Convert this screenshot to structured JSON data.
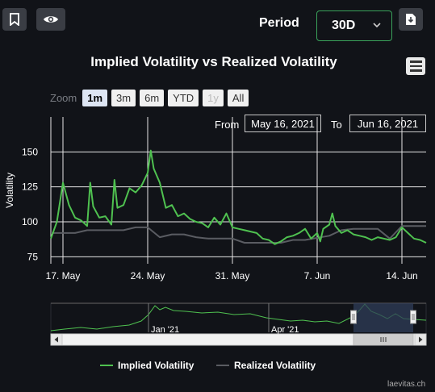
{
  "toolbar": {
    "bookmark_icon": "bookmark-icon",
    "eye_icon": "eye-icon",
    "download_icon": "download-icon",
    "period_label": "Period",
    "period_value": "30D"
  },
  "chart_data": {
    "type": "line",
    "title": "Implied Volatility vs Realized Volatility",
    "ylabel": "Volatility",
    "xlabel": "",
    "ylim": [
      70,
      175
    ],
    "yticks": [
      75,
      100,
      125,
      150
    ],
    "x_range": [
      "2021-05-16",
      "2021-06-16"
    ],
    "x_ticks": [
      {
        "label": "17. May",
        "date": "2021-05-17"
      },
      {
        "label": "24. May",
        "date": "2021-05-24"
      },
      {
        "label": "31. May",
        "date": "2021-05-31"
      },
      {
        "label": "7. Jun",
        "date": "2021-06-07"
      },
      {
        "label": "14. Jun",
        "date": "2021-06-14"
      }
    ],
    "grid": true,
    "legend_position": "bottom",
    "series": [
      {
        "name": "Implied Volatility",
        "color": "#4fc150",
        "points": [
          [
            "2021-05-16 00:00",
            88
          ],
          [
            "2021-05-16 12:00",
            100
          ],
          [
            "2021-05-17 00:00",
            128
          ],
          [
            "2021-05-17 12:00",
            112
          ],
          [
            "2021-05-18 00:00",
            103
          ],
          [
            "2021-05-18 12:00",
            101
          ],
          [
            "2021-05-19 00:00",
            97
          ],
          [
            "2021-05-19 06:00",
            128
          ],
          [
            "2021-05-19 12:00",
            111
          ],
          [
            "2021-05-20 00:00",
            103
          ],
          [
            "2021-05-20 12:00",
            104
          ],
          [
            "2021-05-21 00:00",
            98
          ],
          [
            "2021-05-21 06:00",
            130
          ],
          [
            "2021-05-21 12:00",
            110
          ],
          [
            "2021-05-22 00:00",
            112
          ],
          [
            "2021-05-22 12:00",
            124
          ],
          [
            "2021-05-23 00:00",
            121
          ],
          [
            "2021-05-23 12:00",
            126
          ],
          [
            "2021-05-24 00:00",
            135
          ],
          [
            "2021-05-24 06:00",
            151
          ],
          [
            "2021-05-24 12:00",
            138
          ],
          [
            "2021-05-25 00:00",
            128
          ],
          [
            "2021-05-25 12:00",
            110
          ],
          [
            "2021-05-26 00:00",
            112
          ],
          [
            "2021-05-26 12:00",
            104
          ],
          [
            "2021-05-27 00:00",
            106
          ],
          [
            "2021-05-27 12:00",
            102
          ],
          [
            "2021-05-28 00:00",
            100
          ],
          [
            "2021-05-28 12:00",
            99
          ],
          [
            "2021-05-29 00:00",
            96
          ],
          [
            "2021-05-29 12:00",
            103
          ],
          [
            "2021-05-30 00:00",
            98
          ],
          [
            "2021-05-30 12:00",
            106
          ],
          [
            "2021-05-31 00:00",
            96
          ],
          [
            "2021-05-31 12:00",
            95
          ],
          [
            "2021-06-01 00:00",
            94
          ],
          [
            "2021-06-01 12:00",
            93
          ],
          [
            "2021-06-02 00:00",
            92
          ],
          [
            "2021-06-02 12:00",
            88
          ],
          [
            "2021-06-03 00:00",
            87
          ],
          [
            "2021-06-03 12:00",
            84
          ],
          [
            "2021-06-04 00:00",
            86
          ],
          [
            "2021-06-04 12:00",
            89
          ],
          [
            "2021-06-05 00:00",
            90
          ],
          [
            "2021-06-05 12:00",
            92
          ],
          [
            "2021-06-06 00:00",
            95
          ],
          [
            "2021-06-06 12:00",
            88
          ],
          [
            "2021-06-07 00:00",
            92
          ],
          [
            "2021-06-07 06:00",
            86
          ],
          [
            "2021-06-07 12:00",
            95
          ],
          [
            "2021-06-08 00:00",
            98
          ],
          [
            "2021-06-08 06:00",
            106
          ],
          [
            "2021-06-08 12:00",
            97
          ],
          [
            "2021-06-09 00:00",
            92
          ],
          [
            "2021-06-09 12:00",
            94
          ],
          [
            "2021-06-10 00:00",
            91
          ],
          [
            "2021-06-10 12:00",
            90
          ],
          [
            "2021-06-11 00:00",
            89
          ],
          [
            "2021-06-11 12:00",
            87
          ],
          [
            "2021-06-12 00:00",
            89
          ],
          [
            "2021-06-12 12:00",
            88
          ],
          [
            "2021-06-13 00:00",
            87
          ],
          [
            "2021-06-13 12:00",
            89
          ],
          [
            "2021-06-14 00:00",
            96
          ],
          [
            "2021-06-14 12:00",
            92
          ],
          [
            "2021-06-15 00:00",
            88
          ],
          [
            "2021-06-15 12:00",
            87
          ],
          [
            "2021-06-16 00:00",
            85
          ]
        ]
      },
      {
        "name": "Realized Volatility",
        "color": "#5a5c62",
        "points": [
          [
            "2021-05-16 00:00",
            92
          ],
          [
            "2021-05-18 00:00",
            92
          ],
          [
            "2021-05-19 00:00",
            94
          ],
          [
            "2021-05-20 00:00",
            94
          ],
          [
            "2021-05-22 00:00",
            94
          ],
          [
            "2021-05-23 00:00",
            96
          ],
          [
            "2021-05-24 00:00",
            96
          ],
          [
            "2021-05-25 00:00",
            89
          ],
          [
            "2021-05-26 00:00",
            91
          ],
          [
            "2021-05-27 00:00",
            91
          ],
          [
            "2021-05-28 00:00",
            89
          ],
          [
            "2021-05-29 00:00",
            88
          ],
          [
            "2021-05-31 00:00",
            88
          ],
          [
            "2021-06-01 00:00",
            85
          ],
          [
            "2021-06-04 00:00",
            85
          ],
          [
            "2021-06-05 00:00",
            87
          ],
          [
            "2021-06-06 00:00",
            87
          ],
          [
            "2021-06-08 00:00",
            90
          ],
          [
            "2021-06-09 00:00",
            94
          ],
          [
            "2021-06-10 00:00",
            95
          ],
          [
            "2021-06-12 00:00",
            95
          ],
          [
            "2021-06-13 00:00",
            88
          ],
          [
            "2021-06-14 00:00",
            97
          ],
          [
            "2021-06-16 00:00",
            97
          ]
        ]
      }
    ]
  },
  "zoom": {
    "label": "Zoom",
    "buttons": [
      {
        "label": "1m",
        "state": "active"
      },
      {
        "label": "3m",
        "state": "normal"
      },
      {
        "label": "6m",
        "state": "normal"
      },
      {
        "label": "YTD",
        "state": "normal"
      },
      {
        "label": "1y",
        "state": "disabled"
      },
      {
        "label": "All",
        "state": "normal"
      }
    ]
  },
  "range": {
    "from_label": "From",
    "from_value": "May 16, 2021",
    "to_label": "To",
    "to_value": "Jun 16, 2021"
  },
  "navigator": {
    "labels": [
      "Jan '21",
      "Apr '21"
    ],
    "scrollbar_grip_icon": "grip-icon"
  },
  "brand": "laevitas.ch"
}
